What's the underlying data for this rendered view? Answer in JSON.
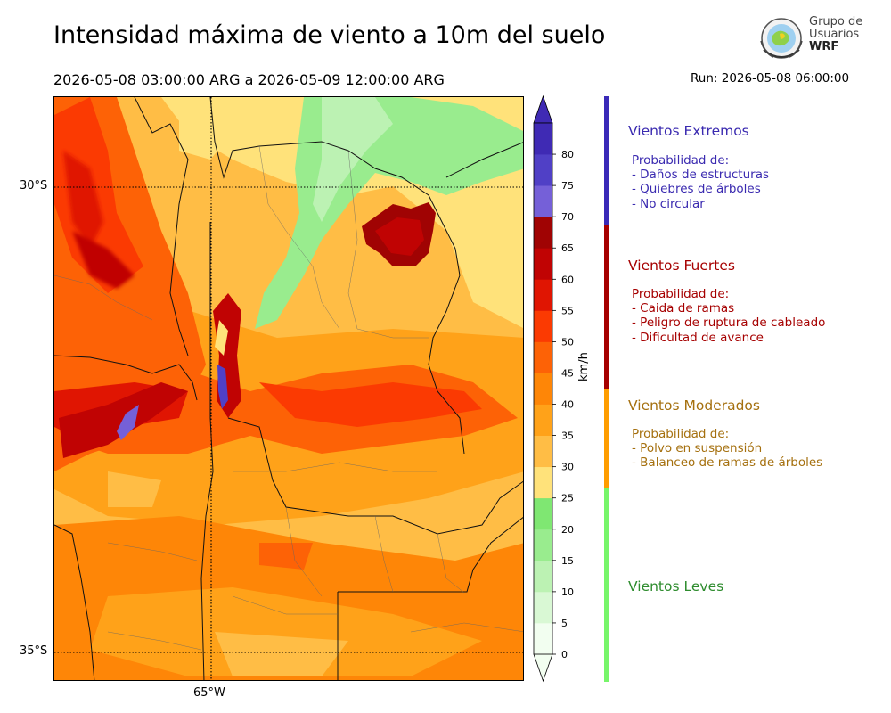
{
  "title": "Intensidad máxima de viento a 10m del suelo",
  "period": "2026-05-08 03:00:00 ARG  a  2026-05-09 12:00:00 ARG",
  "run": "Run: 2026-05-08 06:00:00",
  "logo": {
    "line1": "Grupo de",
    "line2": "Usuarios",
    "line3": "WRF"
  },
  "map": {
    "lat_labels": [
      "30°S",
      "35°S"
    ],
    "lon_label": "65°W",
    "graticule": "dotted"
  },
  "colorbar": {
    "unit": "km/h",
    "ticks": [
      "0",
      "5",
      "10",
      "15",
      "20",
      "25",
      "30",
      "35",
      "40",
      "45",
      "50",
      "55",
      "60",
      "65",
      "70",
      "75",
      "80"
    ],
    "colors": [
      "#f2fef0",
      "#d9f8d4",
      "#bcf2b3",
      "#99ec8e",
      "#7fe772",
      "#ffe27a",
      "#ffbd45",
      "#ffa219",
      "#fe8607",
      "#fd6206",
      "#fb3a02",
      "#e01502",
      "#c00303",
      "#a00303",
      "#7560d8",
      "#5040c6",
      "#3f2ab4"
    ],
    "extend": "both"
  },
  "categories": [
    {
      "name": "Vientos Extremos",
      "color": "#3a2ab0",
      "desc": [
        "Probabilidad de:",
        "- Daños de estructuras",
        "- Quiebres de árboles",
        "- No circular"
      ]
    },
    {
      "name": "Vientos Fuertes",
      "color": "#a60000",
      "desc": [
        "Probabilidad de:",
        "- Caida de ramas",
        "- Peligro de ruptura de cableado",
        "- Dificultad de avance"
      ]
    },
    {
      "name": "Vientos Moderados",
      "color": "#a5700f",
      "desc": [
        "Probabilidad de:",
        "- Polvo en suspensión",
        "- Balanceo de ramas de árboles"
      ]
    },
    {
      "name": "Vientos Leves",
      "color": "#2e8c2e",
      "desc": []
    }
  ],
  "category_bar_colors": [
    "#3a2ab8",
    "#a60000",
    "#ff9d00",
    "#77f56a"
  ]
}
